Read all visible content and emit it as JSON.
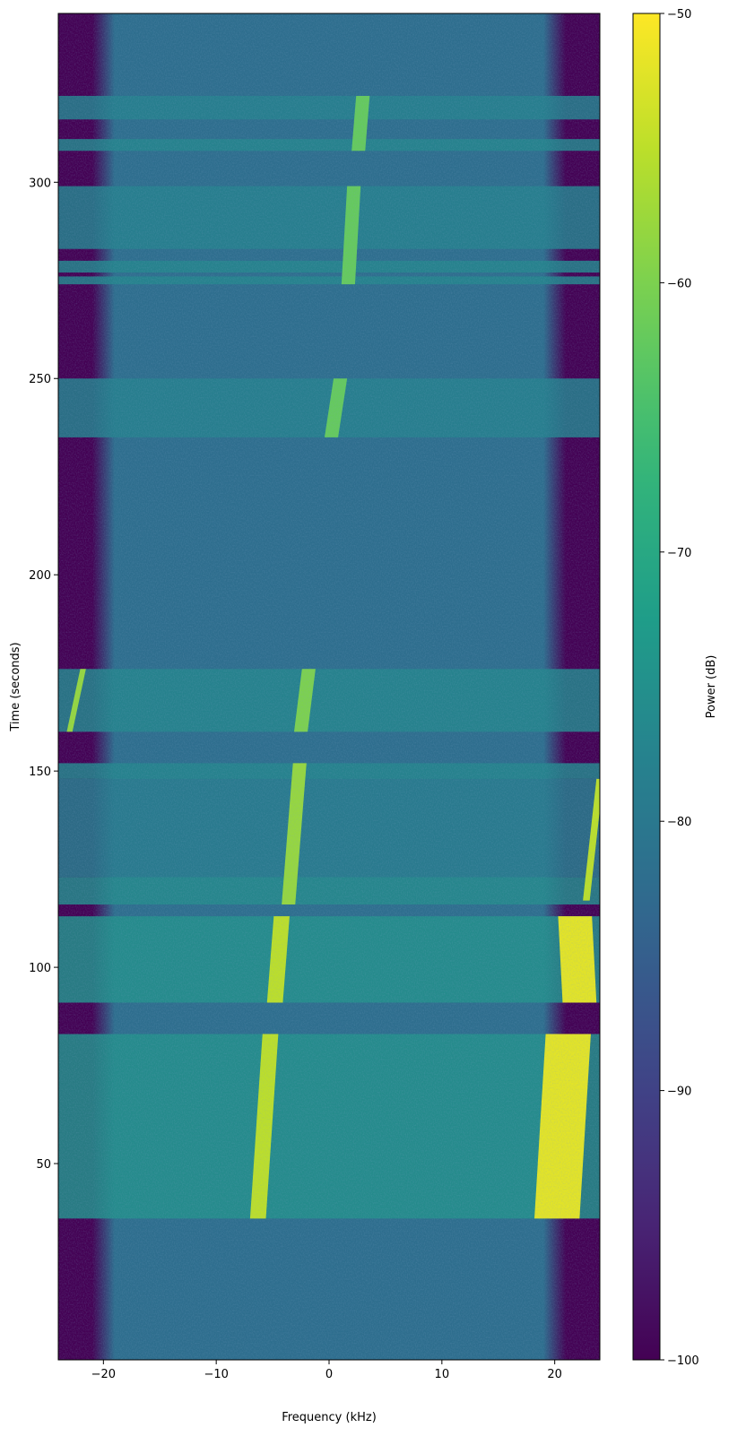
{
  "chart_data": {
    "type": "spectrogram",
    "xlabel": "Frequency (kHz)",
    "ylabel": "Time (seconds)",
    "colorbar_label": "Power (dB)",
    "colormap": "viridis",
    "xlim": [
      -24,
      24
    ],
    "xticks": [
      {
        "value": -20,
        "label": "−20"
      },
      {
        "value": -10,
        "label": "−10"
      },
      0,
      10,
      20
    ],
    "ylim": [
      0,
      343
    ],
    "yticks": [
      50,
      100,
      150,
      200,
      250,
      300
    ],
    "clim": [
      -100,
      -50
    ],
    "cticks": [
      {
        "value": -100,
        "label": "−100"
      },
      {
        "value": -90,
        "label": "−90"
      },
      {
        "value": -80,
        "label": "−80"
      },
      {
        "value": -70,
        "label": "−70"
      },
      {
        "value": -60,
        "label": "−60"
      },
      {
        "value": -50,
        "label": "−50"
      }
    ],
    "background": {
      "level": -82,
      "edge_level": -100,
      "passband": [
        -19,
        19
      ]
    },
    "bands": [
      {
        "t0": 36,
        "t1": 83,
        "level": -75
      },
      {
        "t0": 91,
        "t1": 113,
        "level": -75
      },
      {
        "t0": 116,
        "t1": 123,
        "level": -76
      },
      {
        "t0": 123,
        "t1": 148,
        "level": -79
      },
      {
        "t0": 148,
        "t1": 152,
        "level": -77
      },
      {
        "t0": 160,
        "t1": 176,
        "level": -77
      },
      {
        "t0": 235,
        "t1": 250,
        "level": -78
      },
      {
        "t0": 274,
        "t1": 276,
        "level": -77
      },
      {
        "t0": 277,
        "t1": 280,
        "level": -77
      },
      {
        "t0": 283,
        "t1": 299,
        "level": -78
      },
      {
        "t0": 308,
        "t1": 311,
        "level": -77
      },
      {
        "t0": 316,
        "t1": 322,
        "level": -78
      }
    ],
    "tracks": [
      {
        "t0": 36,
        "t1": 83,
        "f0": -6.3,
        "f1": -5.2,
        "width": 1.4,
        "level": -55
      },
      {
        "t0": 91,
        "t1": 113,
        "f0": -4.8,
        "f1": -4.2,
        "width": 1.4,
        "level": -55
      },
      {
        "t0": 116,
        "t1": 152,
        "f0": -3.6,
        "f1": -2.6,
        "width": 1.2,
        "level": -58
      },
      {
        "t0": 160,
        "t1": 176,
        "f0": -2.5,
        "f1": -1.8,
        "width": 1.2,
        "level": -60
      },
      {
        "t0": 235,
        "t1": 250,
        "f0": 0.2,
        "f1": 1.0,
        "width": 1.2,
        "level": -62
      },
      {
        "t0": 274,
        "t1": 299,
        "f0": 1.7,
        "f1": 2.2,
        "width": 1.2,
        "level": -62
      },
      {
        "t0": 308,
        "t1": 322,
        "f0": 2.6,
        "f1": 3.0,
        "width": 1.2,
        "level": -62
      },
      {
        "t0": 36,
        "t1": 83,
        "f0": 20.2,
        "f1": 21.2,
        "width": 4,
        "level": -52
      },
      {
        "t0": 91,
        "t1": 113,
        "f0": 22.2,
        "f1": 21.8,
        "width": 3,
        "level": -52
      },
      {
        "t0": 117,
        "t1": 148,
        "f0": 22.8,
        "f1": 24,
        "width": 0.6,
        "level": -55
      },
      {
        "t0": 160,
        "t1": 176,
        "f0": -23,
        "f1": -21.8,
        "width": 0.5,
        "level": -58
      }
    ]
  }
}
